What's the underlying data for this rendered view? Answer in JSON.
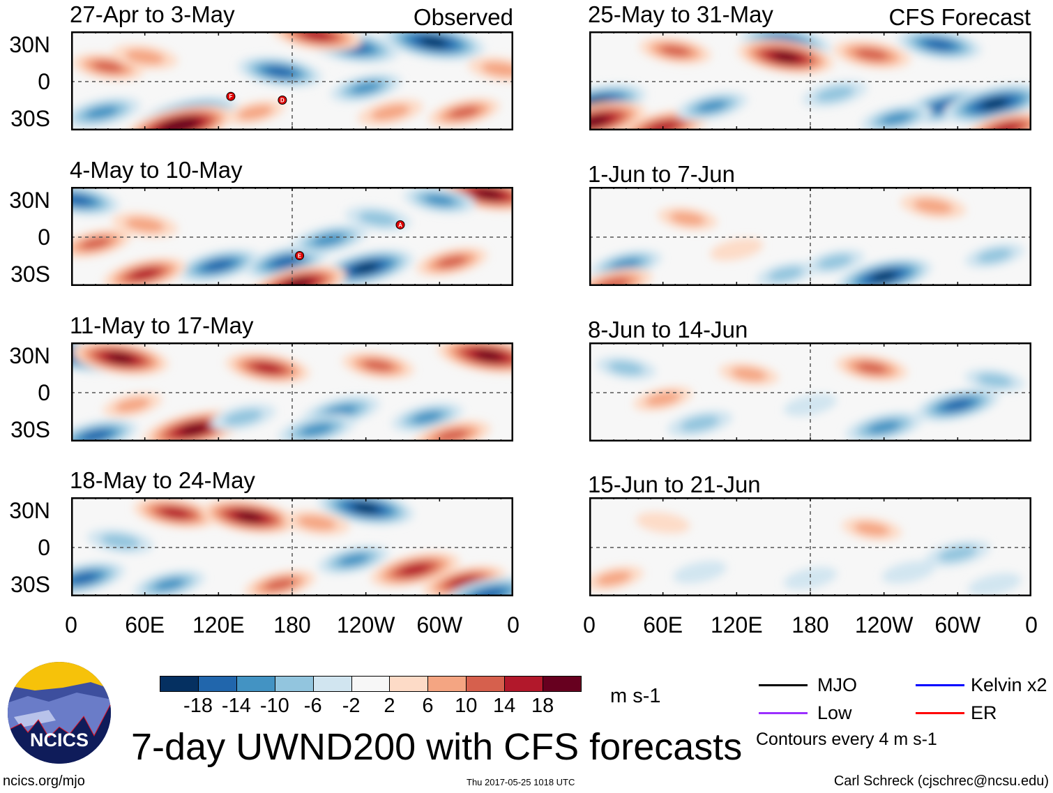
{
  "title": "7-day UWND200 with CFS forecasts",
  "labels": {
    "observed": "Observed",
    "forecast": "CFS Forecast"
  },
  "lat_ticks": [
    "30N",
    "0",
    "30S"
  ],
  "lon_ticks": [
    "0",
    "60E",
    "120E",
    "180",
    "120W",
    "60W",
    "0"
  ],
  "colorbar": {
    "colors": [
      "#053061",
      "#2166ac",
      "#4393c3",
      "#92c5de",
      "#d1e5f0",
      "#f7f7f7",
      "#fddbc7",
      "#f4a582",
      "#d6604d",
      "#b2182b",
      "#67001f"
    ],
    "labels": [
      "-18",
      "-14",
      "-10",
      "-6",
      "-2",
      "2",
      "6",
      "10",
      "14",
      "18"
    ],
    "units": "m s-1"
  },
  "legend": {
    "items": [
      {
        "label": "MJO",
        "color": "#000000"
      },
      {
        "label": "Kelvin x2",
        "color": "#0000ff"
      },
      {
        "label": "Low",
        "color": "#9b30ff"
      },
      {
        "label": "ER",
        "color": "#ff0000"
      }
    ],
    "contours": "Contours every 4 m s-1"
  },
  "footer": {
    "left": "ncics.org/mjo",
    "center": "Thu 2017-05-25 1018 UTC",
    "right": "Carl Schreck (cjschrec@ncsu.edu)",
    "logo": "NCICS"
  },
  "panels": [
    {
      "title": "27-Apr to 3-May",
      "col": 0,
      "row": 0,
      "tag": "observed",
      "storms": [
        {
          "label": "F",
          "lon": 130,
          "lat": -12
        },
        {
          "label": "D",
          "lon": 172,
          "lat": -15
        }
      ],
      "field": [
        [
          95,
          -28,
          -20
        ],
        [
          88,
          -36,
          22
        ],
        [
          230,
          28,
          -16
        ],
        [
          295,
          32,
          -20
        ],
        [
          170,
          8,
          -14
        ],
        [
          240,
          -5,
          -10
        ],
        [
          30,
          12,
          10
        ],
        [
          60,
          20,
          8
        ],
        [
          25,
          -25,
          -12
        ],
        [
          320,
          -25,
          10
        ],
        [
          200,
          38,
          16
        ],
        [
          350,
          10,
          8
        ],
        [
          260,
          -25,
          8
        ],
        [
          150,
          -25,
          6
        ]
      ]
    },
    {
      "title": "25-May to 31-May",
      "col": 1,
      "row": 0,
      "tag": "forecast",
      "field": [
        [
          5,
          -18,
          -20
        ],
        [
          5,
          -32,
          20
        ],
        [
          60,
          -37,
          16
        ],
        [
          160,
          32,
          -16
        ],
        [
          160,
          20,
          18
        ],
        [
          230,
          22,
          12
        ],
        [
          285,
          30,
          -14
        ],
        [
          290,
          -20,
          -16
        ],
        [
          330,
          -18,
          -20
        ],
        [
          100,
          -20,
          -10
        ],
        [
          200,
          -10,
          -8
        ],
        [
          340,
          -38,
          14
        ],
        [
          70,
          25,
          10
        ],
        [
          250,
          -30,
          -10
        ]
      ]
    },
    {
      "title": "4-May to 10-May",
      "col": 0,
      "row": 1,
      "tag": "observed",
      "storms": [
        {
          "label": "A",
          "lon": 268,
          "lat": 10
        },
        {
          "label": "E",
          "lon": 186,
          "lat": -15
        }
      ],
      "field": [
        [
          5,
          30,
          -14
        ],
        [
          340,
          35,
          18
        ],
        [
          120,
          -23,
          -14
        ],
        [
          175,
          -20,
          -14
        ],
        [
          240,
          -25,
          -18
        ],
        [
          210,
          -2,
          -12
        ],
        [
          185,
          -38,
          18
        ],
        [
          60,
          -30,
          14
        ],
        [
          300,
          30,
          -10
        ],
        [
          20,
          -5,
          10
        ],
        [
          250,
          15,
          -8
        ],
        [
          60,
          10,
          8
        ],
        [
          310,
          -20,
          10
        ]
      ]
    },
    {
      "title": "1-Jun to 7-Jun",
      "col": 1,
      "row": 1,
      "tag": "forecast",
      "field": [
        [
          240,
          -32,
          -18
        ],
        [
          30,
          -22,
          -10
        ],
        [
          80,
          15,
          6
        ],
        [
          280,
          25,
          8
        ],
        [
          200,
          -20,
          -6
        ],
        [
          120,
          -10,
          4
        ],
        [
          330,
          -15,
          -6
        ],
        [
          160,
          -30,
          -6
        ],
        [
          20,
          -38,
          12
        ]
      ]
    },
    {
      "title": "11-May to 17-May",
      "col": 0,
      "row": 2,
      "tag": "observed",
      "field": [
        [
          10,
          30,
          -18
        ],
        [
          40,
          28,
          18
        ],
        [
          100,
          -30,
          20
        ],
        [
          20,
          -35,
          -14
        ],
        [
          340,
          30,
          20
        ],
        [
          220,
          -15,
          -12
        ],
        [
          290,
          -20,
          -10
        ],
        [
          140,
          -20,
          -8
        ],
        [
          160,
          20,
          14
        ],
        [
          250,
          22,
          10
        ],
        [
          200,
          -30,
          -12
        ],
        [
          50,
          -10,
          6
        ],
        [
          310,
          -35,
          12
        ]
      ]
    },
    {
      "title": "8-Jun to 14-Jun",
      "col": 1,
      "row": 2,
      "tag": "forecast",
      "field": [
        [
          300,
          -10,
          -14
        ],
        [
          240,
          -28,
          -12
        ],
        [
          230,
          20,
          10
        ],
        [
          130,
          15,
          6
        ],
        [
          60,
          -5,
          6
        ],
        [
          90,
          -25,
          -8
        ],
        [
          330,
          10,
          -6
        ],
        [
          30,
          20,
          -6
        ],
        [
          180,
          -10,
          -4
        ]
      ]
    },
    {
      "title": "18-May to 24-May",
      "col": 0,
      "row": 3,
      "tag": "observed",
      "field": [
        [
          85,
          28,
          14
        ],
        [
          145,
          25,
          18
        ],
        [
          240,
          32,
          -18
        ],
        [
          280,
          -18,
          16
        ],
        [
          320,
          -28,
          14
        ],
        [
          10,
          -25,
          -14
        ],
        [
          80,
          -30,
          -10
        ],
        [
          170,
          -30,
          10
        ],
        [
          230,
          -10,
          -10
        ],
        [
          340,
          -38,
          -16
        ],
        [
          40,
          5,
          -8
        ],
        [
          200,
          20,
          8
        ]
      ]
    },
    {
      "title": "15-Jun to 21-Jun",
      "col": 1,
      "row": 3,
      "tag": "forecast",
      "field": [
        [
          300,
          -5,
          -8
        ],
        [
          230,
          15,
          6
        ],
        [
          20,
          -25,
          6
        ],
        [
          90,
          -20,
          -4
        ],
        [
          180,
          -25,
          -4
        ],
        [
          330,
          -30,
          -4
        ],
        [
          60,
          20,
          4
        ],
        [
          260,
          -20,
          -4
        ]
      ]
    }
  ]
}
